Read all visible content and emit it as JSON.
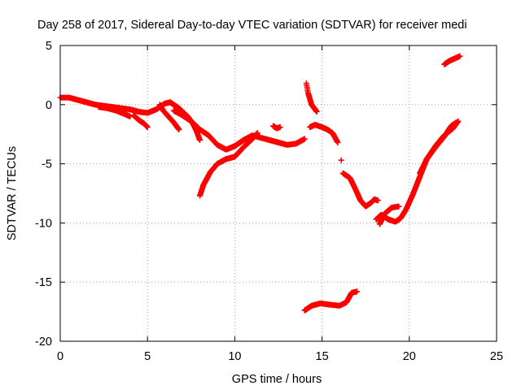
{
  "chart_data": {
    "type": "scatter",
    "title": "Day 258 of 2017, Sidereal Day-to-day VTEC variation (SDTVAR) for receiver medi",
    "xlabel": "GPS time / hours",
    "ylabel": "SDTVAR / TECUs",
    "xlim": [
      0,
      25
    ],
    "ylim": [
      -20,
      5
    ],
    "xticks": [
      0,
      5,
      10,
      15,
      20,
      25
    ],
    "yticks": [
      5,
      0,
      -5,
      -10,
      -15,
      -20
    ],
    "grid": true,
    "marker": "+",
    "series": [
      {
        "name": "SDTVAR",
        "color": "#ff0000",
        "segments": [
          [
            [
              0.0,
              0.6
            ],
            [
              0.5,
              0.6
            ],
            [
              1.0,
              0.4
            ],
            [
              1.5,
              0.2
            ],
            [
              2.0,
              0.0
            ],
            [
              2.5,
              -0.1
            ],
            [
              3.0,
              -0.2
            ],
            [
              3.5,
              -0.3
            ],
            [
              4.0,
              -0.4
            ],
            [
              4.5,
              -0.6
            ],
            [
              5.0,
              -0.7
            ],
            [
              5.5,
              -0.4
            ],
            [
              6.0,
              0.1
            ],
            [
              6.3,
              0.2
            ]
          ],
          [
            [
              2.2,
              -0.2
            ],
            [
              2.7,
              -0.3
            ],
            [
              3.2,
              -0.5
            ],
            [
              3.7,
              -0.8
            ],
            [
              4.0,
              -1.0
            ]
          ],
          [
            [
              4.2,
              -0.9
            ],
            [
              4.5,
              -1.3
            ],
            [
              4.8,
              -1.6
            ],
            [
              5.0,
              -1.9
            ]
          ],
          [
            [
              5.7,
              0.0
            ],
            [
              5.9,
              -0.5
            ],
            [
              6.2,
              -1.0
            ],
            [
              6.5,
              -1.5
            ],
            [
              6.8,
              -2.1
            ]
          ],
          [
            [
              6.3,
              0.2
            ],
            [
              6.8,
              -0.3
            ],
            [
              7.3,
              -1.0
            ],
            [
              7.6,
              -1.6
            ],
            [
              7.8,
              -2.2
            ],
            [
              8.0,
              -3.0
            ]
          ],
          [
            [
              6.5,
              -0.5
            ],
            [
              7.0,
              -0.9
            ],
            [
              7.5,
              -1.4
            ],
            [
              8.0,
              -2.1
            ],
            [
              8.5,
              -2.6
            ],
            [
              9.0,
              -3.4
            ],
            [
              9.5,
              -3.8
            ],
            [
              10.0,
              -3.5
            ],
            [
              10.5,
              -3.0
            ],
            [
              11.0,
              -2.6
            ],
            [
              11.5,
              -2.8
            ],
            [
              12.0,
              -3.0
            ],
            [
              12.5,
              -3.2
            ],
            [
              13.0,
              -3.4
            ],
            [
              13.5,
              -3.3
            ],
            [
              14.0,
              -2.9
            ]
          ],
          [
            [
              8.0,
              -7.7
            ],
            [
              8.2,
              -6.8
            ],
            [
              8.6,
              -5.7
            ],
            [
              9.0,
              -5.0
            ],
            [
              9.5,
              -4.6
            ],
            [
              10.0,
              -4.4
            ],
            [
              10.5,
              -3.6
            ],
            [
              11.0,
              -2.9
            ],
            [
              11.3,
              -2.4
            ]
          ],
          [
            [
              12.2,
              -1.8
            ],
            [
              12.4,
              -2.0
            ],
            [
              12.6,
              -1.9
            ]
          ],
          [
            [
              14.1,
              1.8
            ],
            [
              14.2,
              1.0
            ],
            [
              14.4,
              0.0
            ],
            [
              14.7,
              -0.6
            ]
          ],
          [
            [
              14.3,
              -1.9
            ],
            [
              14.6,
              -1.7
            ],
            [
              15.0,
              -1.9
            ],
            [
              15.3,
              -2.1
            ],
            [
              15.6,
              -2.4
            ],
            [
              15.9,
              -3.2
            ]
          ],
          [
            [
              16.1,
              -4.7
            ]
          ],
          [
            [
              16.2,
              -5.8
            ],
            [
              16.6,
              -6.2
            ],
            [
              16.9,
              -7.1
            ],
            [
              17.2,
              -8.1
            ],
            [
              17.5,
              -8.6
            ],
            [
              17.8,
              -8.3
            ],
            [
              18.0,
              -8.0
            ],
            [
              18.2,
              -8.1
            ]
          ],
          [
            [
              18.1,
              -9.7
            ],
            [
              18.4,
              -9.3
            ],
            [
              18.8,
              -9.7
            ],
            [
              19.2,
              -9.9
            ],
            [
              19.5,
              -9.6
            ],
            [
              19.8,
              -8.9
            ],
            [
              20.2,
              -7.6
            ],
            [
              20.6,
              -6.1
            ],
            [
              21.0,
              -4.6
            ],
            [
              21.5,
              -3.5
            ],
            [
              22.0,
              -2.6
            ],
            [
              22.5,
              -2.0
            ],
            [
              22.8,
              -1.4
            ]
          ],
          [
            [
              18.3,
              -10.1
            ],
            [
              18.6,
              -9.2
            ],
            [
              19.0,
              -8.7
            ],
            [
              19.4,
              -8.6
            ]
          ],
          [
            [
              20.6,
              -5.8
            ],
            [
              21.0,
              -4.6
            ],
            [
              21.5,
              -3.6
            ],
            [
              22.0,
              -2.7
            ],
            [
              22.4,
              -1.8
            ],
            [
              22.7,
              -1.5
            ]
          ],
          [
            [
              14.0,
              -17.4
            ],
            [
              14.4,
              -17.0
            ],
            [
              14.9,
              -16.8
            ],
            [
              15.4,
              -16.9
            ],
            [
              16.0,
              -17.0
            ],
            [
              16.4,
              -16.7
            ],
            [
              16.7,
              -15.9
            ],
            [
              17.0,
              -15.8
            ]
          ],
          [
            [
              22.0,
              3.4
            ],
            [
              22.3,
              3.7
            ],
            [
              22.6,
              3.9
            ],
            [
              22.9,
              4.1
            ]
          ]
        ]
      }
    ]
  }
}
